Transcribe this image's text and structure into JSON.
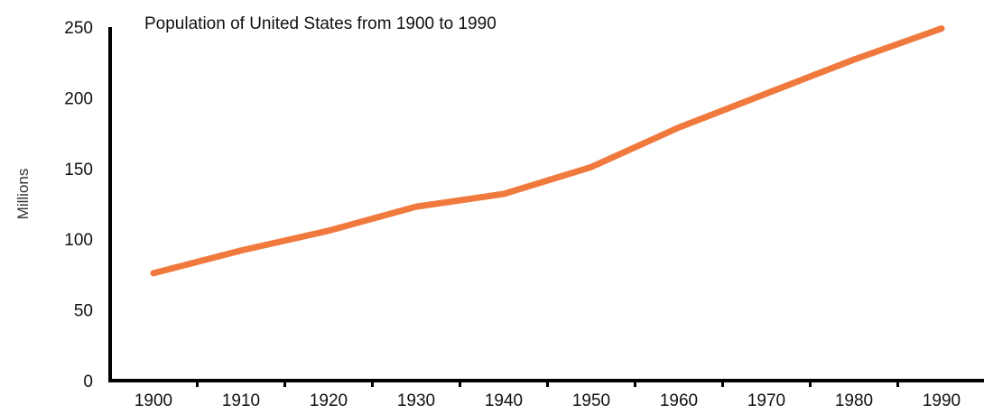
{
  "chart_data": {
    "type": "line",
    "title": "Population of United States from 1900 to 1990",
    "xlabel": "",
    "ylabel": "Millions",
    "x": [
      1900,
      1910,
      1920,
      1930,
      1940,
      1950,
      1960,
      1970,
      1980,
      1990
    ],
    "x_tick_labels": [
      "1900",
      "1910",
      "1920",
      "1930",
      "1940",
      "1950",
      "1960",
      "1970",
      "1980",
      "1990"
    ],
    "y_ticks": [
      0,
      50,
      100,
      150,
      200,
      250
    ],
    "y_tick_labels": [
      "0",
      "50",
      "100",
      "150",
      "200",
      "250"
    ],
    "ylim": [
      0,
      250
    ],
    "grid": false,
    "legend": "none",
    "series": [
      {
        "values": [
          76,
          92,
          106,
          123,
          132,
          151,
          179,
          203,
          227,
          249
        ],
        "color": "#f07a3e"
      }
    ]
  }
}
